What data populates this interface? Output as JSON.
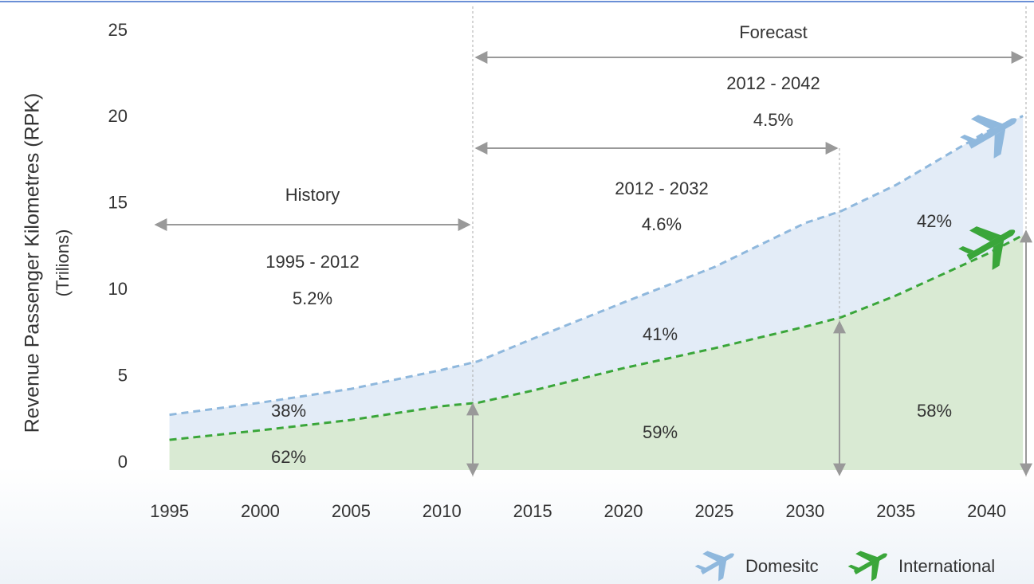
{
  "chart_data": {
    "type": "stacked_area",
    "y_label": "Revenue Passenger Kilometres (RPK)",
    "y_sublabel": "(Trilions)",
    "x": [
      1995,
      2000,
      2005,
      2010,
      2012,
      2015,
      2020,
      2025,
      2030,
      2032,
      2035,
      2040,
      2042
    ],
    "series": [
      {
        "name": "International",
        "color": "#3aa63a",
        "fill": "#d9ead3",
        "values": [
          1.75,
          2.3,
          2.9,
          3.7,
          3.9,
          4.6,
          5.9,
          7.05,
          8.3,
          8.85,
          10.1,
          12.5,
          13.6
        ]
      },
      {
        "name": "Domesitc",
        "color": "#8fb8dd",
        "fill": "#e3ecf7",
        "values": [
          1.45,
          1.6,
          1.8,
          2.1,
          2.4,
          3.0,
          3.8,
          4.7,
          6.0,
          6.15,
          6.4,
          7.1,
          6.9
        ]
      }
    ],
    "xlim": [
      1993,
      2042.3
    ],
    "xticks": [
      1995,
      2000,
      2005,
      2010,
      2015,
      2020,
      2025,
      2030,
      2035,
      2040
    ],
    "ylim": [
      0,
      25
    ],
    "yticks": [
      0,
      5,
      10,
      15,
      20,
      25
    ],
    "annotations": [
      "Forecast",
      "2012 - 2042",
      "4.5%",
      "2012 - 2032",
      "4.6%",
      "History",
      "1995 - 2012",
      "5.2%",
      "38%",
      "62%",
      "41%",
      "59%",
      "42%",
      "58%"
    ]
  }
}
